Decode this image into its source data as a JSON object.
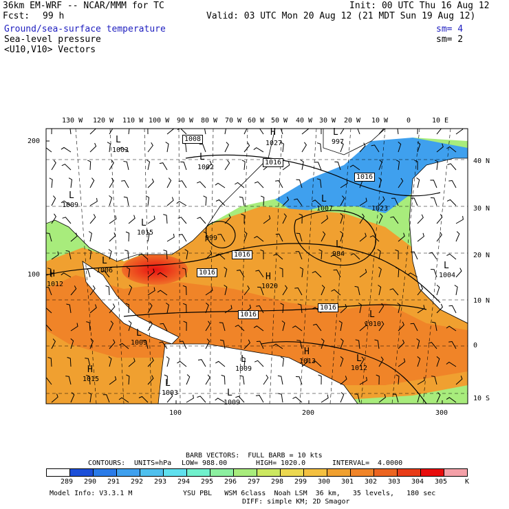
{
  "header": {
    "model": "36km EM-WRF -- NCAR/MMM for TC",
    "init": "Init: 00 UTC Thu 16 Aug 12",
    "fcst_label": "Fcst:",
    "fcst_value": "99 h",
    "valid": "Valid: 03 UTC Mon 20 Aug 12 (21 MDT Sun 19 Aug 12)",
    "field1": "Ground/sea-surface temperature",
    "field1_sm": "sm= 4",
    "field2": "Sea-level pressure",
    "field2_sm": "sm= 2",
    "field3": "<U10,V10> Vectors"
  },
  "top_lon_labels": [
    "130 W",
    "120 W",
    "110 W",
    "100 W",
    "90 W",
    "80 W",
    "70 W",
    "60 W",
    "50 W",
    "40 W",
    "30 W",
    "20 W",
    "10 W",
    "0",
    "10 E"
  ],
  "right_lat_labels": [
    "40 N",
    "30 N",
    "20 N",
    "10 N",
    "0",
    "10 S"
  ],
  "left_grid_labels": [
    "200",
    "100"
  ],
  "bottom_grid_labels": [
    "100",
    "200",
    "300"
  ],
  "pressure_boxes": [
    "1008",
    "1016",
    "1016",
    "1016",
    "1016",
    "1016",
    "1016"
  ],
  "pressure_labels": [
    "1003",
    "1002",
    "1027",
    "997",
    "1009",
    "1015",
    "999",
    "1007",
    "1023",
    "984",
    "1006",
    "1020",
    "1012",
    "1004",
    "1010",
    "1009",
    "1013",
    "1012",
    "1015",
    "1009",
    "1003",
    "1009"
  ],
  "center_letters": [
    "L",
    "L",
    "L",
    "L",
    "H",
    "L",
    "L",
    "L",
    "L",
    "L",
    "H",
    "H",
    "L",
    "L",
    "L",
    "H",
    "L",
    "H",
    "L",
    "L"
  ],
  "legend": {
    "barb_line": "BARB VECTORS:  FULL BARB = 10 kts",
    "contours_label": "CONTOURS:",
    "units": "UNITS=hPa",
    "low_label": "LOW=",
    "low_value": "988.00",
    "high_label": "HIGH=",
    "high_value": "1020.0",
    "interval_label": "INTERVAL=",
    "interval_value": "4.0000",
    "unit_k": "K",
    "bins": [
      "289",
      "290",
      "291",
      "292",
      "293",
      "294",
      "295",
      "296",
      "297",
      "298",
      "299",
      "300",
      "301",
      "302",
      "303",
      "304",
      "305"
    ],
    "colors": [
      "#1c4fd8",
      "#2a7be8",
      "#3fa0ee",
      "#4fc0ee",
      "#5fe0ee",
      "#70f0cc",
      "#8cf0a0",
      "#a8ec7c",
      "#cce860",
      "#ecd850",
      "#f4c040",
      "#f0a030",
      "#f08428",
      "#ec6420",
      "#e83c18",
      "#e80c0c",
      "#f4a0a8"
    ]
  },
  "footer": {
    "model_info": "Model Info: V3.3.1 M",
    "physics": "YSU PBL   WSM 6class  Noah LSM  36 km,   35 levels,   180 sec",
    "diff": "DIFF: simple KM; 2D Smagor"
  }
}
